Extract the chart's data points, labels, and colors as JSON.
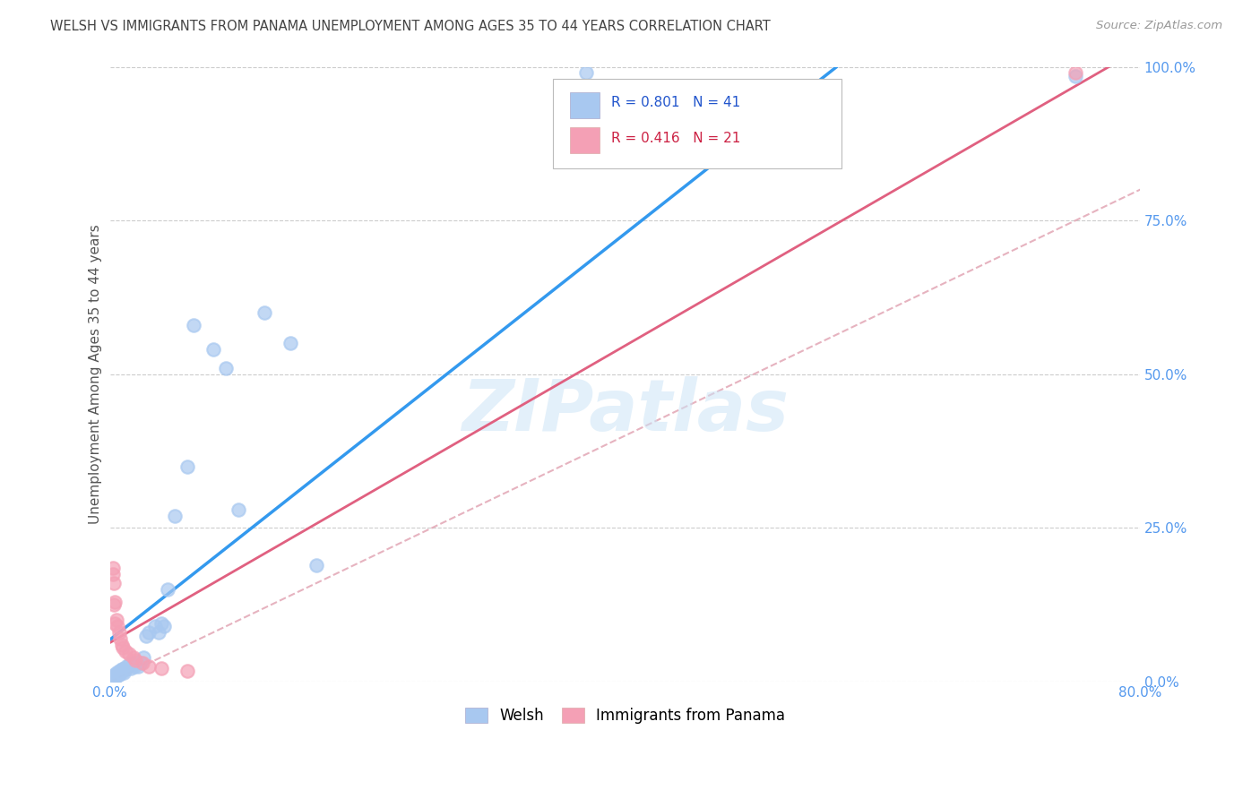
{
  "title": "WELSH VS IMMIGRANTS FROM PANAMA UNEMPLOYMENT AMONG AGES 35 TO 44 YEARS CORRELATION CHART",
  "source": "Source: ZipAtlas.com",
  "ylabel": "Unemployment Among Ages 35 to 44 years",
  "xlim": [
    0.0,
    0.8
  ],
  "ylim": [
    0.0,
    1.0
  ],
  "xtick_positions": [
    0.0,
    0.8
  ],
  "xtick_labels": [
    "0.0%",
    "80.0%"
  ],
  "ytick_positions": [
    0.0,
    0.25,
    0.5,
    0.75,
    1.0
  ],
  "ytick_labels": [
    "0.0%",
    "25.0%",
    "50.0%",
    "75.0%",
    "100.0%"
  ],
  "welsh_R": 0.801,
  "welsh_N": 41,
  "panama_R": 0.416,
  "panama_N": 21,
  "welsh_color": "#a8c8f0",
  "panama_color": "#f4a0b5",
  "welsh_line_color": "#3399ee",
  "panama_line_color": "#e06080",
  "ref_line_color": "#e0a0b0",
  "legend_welsh": "Welsh",
  "legend_panama": "Immigrants from Panama",
  "watermark": "ZIPatlas",
  "bg_color": "#ffffff",
  "grid_color": "#cccccc",
  "title_color": "#444444",
  "source_color": "#999999",
  "tick_color": "#5599ee",
  "label_color": "#555555",
  "welsh_x": [
    0.003,
    0.004,
    0.004,
    0.005,
    0.005,
    0.006,
    0.007,
    0.007,
    0.008,
    0.009,
    0.01,
    0.01,
    0.011,
    0.012,
    0.013,
    0.015,
    0.016,
    0.018,
    0.019,
    0.02,
    0.022,
    0.024,
    0.026,
    0.028,
    0.03,
    0.035,
    0.038,
    0.04,
    0.042,
    0.045,
    0.05,
    0.06,
    0.065,
    0.08,
    0.09,
    0.1,
    0.12,
    0.14,
    0.16,
    0.37,
    0.75
  ],
  "welsh_y": [
    0.005,
    0.008,
    0.012,
    0.01,
    0.015,
    0.01,
    0.012,
    0.018,
    0.015,
    0.02,
    0.018,
    0.02,
    0.015,
    0.02,
    0.025,
    0.028,
    0.022,
    0.03,
    0.025,
    0.03,
    0.025,
    0.03,
    0.04,
    0.075,
    0.08,
    0.09,
    0.08,
    0.095,
    0.09,
    0.15,
    0.27,
    0.35,
    0.58,
    0.54,
    0.51,
    0.28,
    0.6,
    0.55,
    0.19,
    0.99,
    0.985
  ],
  "panama_x": [
    0.002,
    0.002,
    0.003,
    0.003,
    0.004,
    0.004,
    0.005,
    0.006,
    0.007,
    0.008,
    0.009,
    0.01,
    0.012,
    0.015,
    0.018,
    0.02,
    0.025,
    0.03,
    0.04,
    0.06,
    0.75
  ],
  "panama_y": [
    0.185,
    0.175,
    0.16,
    0.125,
    0.13,
    0.095,
    0.1,
    0.09,
    0.08,
    0.07,
    0.06,
    0.055,
    0.05,
    0.045,
    0.04,
    0.035,
    0.03,
    0.025,
    0.022,
    0.018,
    0.99
  ]
}
